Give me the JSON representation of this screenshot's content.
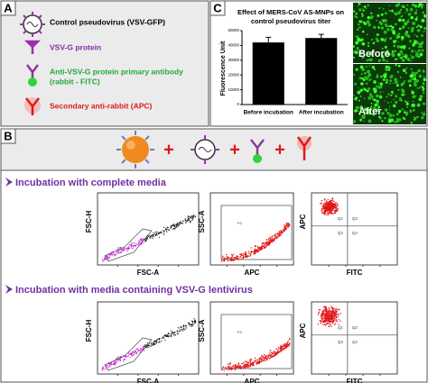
{
  "panel_a": {
    "label": "A",
    "items": [
      "Control pseudovirus (VSV-GFP)",
      "VSV-G protein",
      "Anti-VSV-G protein primary antibody",
      "(rabbit - FITC)",
      "Secondary anti-rabbit (APC)"
    ]
  },
  "panel_b": {
    "label": "B",
    "rows": [
      "Incubation with complete media",
      "Incubation with media containing VSV-G lentivirus"
    ],
    "plots": [
      {
        "y": "FSC-H",
        "x": "FSC-A",
        "gate": "P1"
      },
      {
        "y": "SSC-A",
        "x": "APC",
        "gate": "P2"
      },
      {
        "y": "APC",
        "x": "FITC"
      }
    ],
    "quadrants": [
      "Q1",
      "Q2",
      "Q3",
      "Q4"
    ]
  },
  "panel_c": {
    "label": "C",
    "images": [
      "Before",
      "After"
    ]
  },
  "chart_data": {
    "type": "bar",
    "title": [
      "Effect of MERS-CoV AS-MNPs on",
      "control pseudovirus titer"
    ],
    "ylabel": "Fluorescence Unit",
    "categories": [
      "Before incubation",
      "After incubation"
    ],
    "values": [
      42000,
      45000
    ],
    "errors": [
      3500,
      2500
    ],
    "color": "#000000",
    "ylim": [
      0,
      50000
    ],
    "yticks": [
      0,
      10000,
      20000,
      30000,
      40000,
      50000
    ]
  }
}
